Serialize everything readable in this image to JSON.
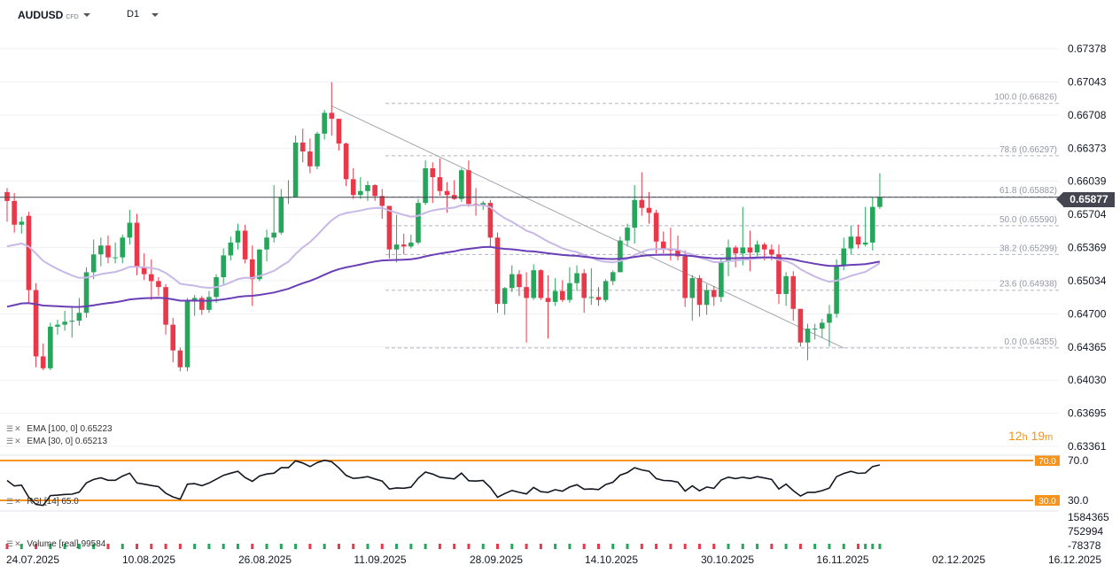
{
  "header": {
    "symbol": "AUDUSD",
    "instrument_type": "CFD",
    "timeframe": "D1"
  },
  "indicators": {
    "ema100": {
      "label": "EMA",
      "params": "[100,  0]",
      "value": "0.65223",
      "color": "#6a3fb5"
    },
    "ema30": {
      "label": "EMA",
      "params": "[30,  0]",
      "value": "0.65213",
      "color": "#c8b8e6"
    },
    "rsi": {
      "label": "RSI",
      "params": "[14]",
      "value": "65.0",
      "upper": "70.0",
      "lower": "30.0",
      "level_color": "#f7931a"
    },
    "volume": {
      "label": "Volume",
      "params": "[real]",
      "value": "99584",
      "axis": [
        "1584365",
        "752994",
        "-78378"
      ]
    }
  },
  "timer": {
    "hours": "12",
    "minutes": "19",
    "h": "h",
    "m": "m"
  },
  "current_price": "0.65877",
  "colors": {
    "up": "#26a65b",
    "down": "#e8394a",
    "axis_text": "#131722",
    "fib": "#9598a1"
  },
  "chart_data": {
    "type": "candlestick",
    "price_axis": [
      "0.67378",
      "0.67043",
      "0.66708",
      "0.66373",
      "0.66039",
      "0.65704",
      "0.65369",
      "0.65034",
      "0.64700",
      "0.64365",
      "0.64030",
      "0.63695",
      "0.63361"
    ],
    "ylim": [
      0.63361,
      0.67378
    ],
    "date_axis": [
      "24.07.2025",
      "10.08.2025",
      "26.08.2025",
      "11.09.2025",
      "28.09.2025",
      "14.10.2025",
      "30.10.2025",
      "16.11.2025",
      "02.12.2025",
      "16.12.2025"
    ],
    "fibonacci": [
      {
        "label": "100.0 (0.66826)",
        "price": 0.66826
      },
      {
        "label": "78.6 (0.66297)",
        "price": 0.66297
      },
      {
        "label": "61.8 (0.65882)",
        "price": 0.65882
      },
      {
        "label": "50.0 (0.65590)",
        "price": 0.6559
      },
      {
        "label": "38.2 (0.65299)",
        "price": 0.65299
      },
      {
        "label": "23.6 (0.64938)",
        "price": 0.64938
      },
      {
        "label": "0.0 (0.64355)",
        "price": 0.64355
      }
    ],
    "candles": [
      [
        0.6593,
        0.6597,
        0.6563,
        0.6584
      ],
      [
        0.6584,
        0.6592,
        0.6552,
        0.656
      ],
      [
        0.656,
        0.6568,
        0.6551,
        0.6563
      ],
      [
        0.6569,
        0.6573,
        0.648,
        0.6494
      ],
      [
        0.6494,
        0.6501,
        0.6416,
        0.6427
      ],
      [
        0.6427,
        0.644,
        0.6413,
        0.6415
      ],
      [
        0.6415,
        0.6461,
        0.6413,
        0.6457
      ],
      [
        0.6457,
        0.6464,
        0.6449,
        0.6459
      ],
      [
        0.6459,
        0.6473,
        0.6453,
        0.6462
      ],
      [
        0.6462,
        0.6478,
        0.6446,
        0.6463
      ],
      [
        0.6463,
        0.6486,
        0.6458,
        0.6471
      ],
      [
        0.6471,
        0.6517,
        0.6466,
        0.6512
      ],
      [
        0.6512,
        0.6545,
        0.6505,
        0.653
      ],
      [
        0.653,
        0.6547,
        0.6518,
        0.6539
      ],
      [
        0.6539,
        0.6549,
        0.6521,
        0.6527
      ],
      [
        0.6527,
        0.6542,
        0.6521,
        0.6527
      ],
      [
        0.6527,
        0.655,
        0.6521,
        0.6547
      ],
      [
        0.6547,
        0.6575,
        0.654,
        0.6562
      ],
      [
        0.6562,
        0.6571,
        0.6509,
        0.6517
      ],
      [
        0.6517,
        0.6531,
        0.6504,
        0.651
      ],
      [
        0.651,
        0.6525,
        0.6484,
        0.6503
      ],
      [
        0.6503,
        0.6507,
        0.6488,
        0.6497
      ],
      [
        0.6497,
        0.65,
        0.6449,
        0.6459
      ],
      [
        0.6459,
        0.6466,
        0.6421,
        0.6433
      ],
      [
        0.6433,
        0.6436,
        0.6412,
        0.6416
      ],
      [
        0.6416,
        0.6486,
        0.6412,
        0.6483
      ],
      [
        0.6483,
        0.6489,
        0.6468,
        0.6486
      ],
      [
        0.6486,
        0.6488,
        0.6469,
        0.6474
      ],
      [
        0.6474,
        0.6493,
        0.6471,
        0.6487
      ],
      [
        0.6487,
        0.651,
        0.6481,
        0.6507
      ],
      [
        0.6507,
        0.6536,
        0.65,
        0.6529
      ],
      [
        0.6529,
        0.6548,
        0.6524,
        0.6542
      ],
      [
        0.6542,
        0.6561,
        0.6535,
        0.6554
      ],
      [
        0.6554,
        0.656,
        0.6521,
        0.6525
      ],
      [
        0.6525,
        0.6539,
        0.6478,
        0.6505
      ],
      [
        0.6505,
        0.6535,
        0.6503,
        0.6535
      ],
      [
        0.6535,
        0.6555,
        0.6523,
        0.6547
      ],
      [
        0.6547,
        0.66,
        0.6542,
        0.6552
      ],
      [
        0.6552,
        0.6596,
        0.655,
        0.6588
      ],
      [
        0.6588,
        0.6605,
        0.6581,
        0.6588
      ],
      [
        0.6588,
        0.665,
        0.6588,
        0.6643
      ],
      [
        0.6643,
        0.6657,
        0.6623,
        0.6634
      ],
      [
        0.6634,
        0.6647,
        0.6612,
        0.6619
      ],
      [
        0.6619,
        0.6654,
        0.6616,
        0.6652
      ],
      [
        0.6652,
        0.6676,
        0.6646,
        0.6673
      ],
      [
        0.6673,
        0.6704,
        0.665,
        0.6667
      ],
      [
        0.6667,
        0.6667,
        0.6635,
        0.6642
      ],
      [
        0.6642,
        0.6643,
        0.6599,
        0.6606
      ],
      [
        0.6606,
        0.6617,
        0.6586,
        0.659
      ],
      [
        0.659,
        0.6608,
        0.6586,
        0.6594
      ],
      [
        0.6594,
        0.6604,
        0.6584,
        0.66
      ],
      [
        0.66,
        0.6601,
        0.6584,
        0.6589
      ],
      [
        0.6589,
        0.6596,
        0.6566,
        0.6579
      ],
      [
        0.6579,
        0.6579,
        0.6526,
        0.6535
      ],
      [
        0.6535,
        0.657,
        0.6522,
        0.654
      ],
      [
        0.654,
        0.6551,
        0.653,
        0.6538
      ],
      [
        0.6538,
        0.655,
        0.6536,
        0.6542
      ],
      [
        0.6542,
        0.6586,
        0.654,
        0.6582
      ],
      [
        0.6582,
        0.6625,
        0.658,
        0.6617
      ],
      [
        0.6617,
        0.6623,
        0.6582,
        0.6608
      ],
      [
        0.6608,
        0.6627,
        0.6589,
        0.6594
      ],
      [
        0.6594,
        0.6603,
        0.6572,
        0.659
      ],
      [
        0.659,
        0.6605,
        0.6585,
        0.6586
      ],
      [
        0.6586,
        0.6617,
        0.6583,
        0.6615
      ],
      [
        0.6615,
        0.6625,
        0.6578,
        0.6581
      ],
      [
        0.6581,
        0.6597,
        0.6569,
        0.6579
      ],
      [
        0.6579,
        0.6584,
        0.6575,
        0.6582
      ],
      [
        0.6582,
        0.6585,
        0.6538,
        0.6547
      ],
      [
        0.6547,
        0.6552,
        0.6471,
        0.648
      ],
      [
        0.648,
        0.6497,
        0.6469,
        0.6496
      ],
      [
        0.6496,
        0.6519,
        0.6492,
        0.651
      ],
      [
        0.651,
        0.6514,
        0.6488,
        0.6497
      ],
      [
        0.6497,
        0.6512,
        0.6441,
        0.6486
      ],
      [
        0.6486,
        0.652,
        0.6484,
        0.6514
      ],
      [
        0.6514,
        0.6515,
        0.6484,
        0.6486
      ],
      [
        0.6486,
        0.6509,
        0.6445,
        0.6482
      ],
      [
        0.6482,
        0.6506,
        0.6478,
        0.6493
      ],
      [
        0.6493,
        0.6504,
        0.6482,
        0.6484
      ],
      [
        0.6484,
        0.6517,
        0.6481,
        0.6501
      ],
      [
        0.6501,
        0.6519,
        0.6493,
        0.6511
      ],
      [
        0.6511,
        0.6515,
        0.6471,
        0.6486
      ],
      [
        0.6486,
        0.6516,
        0.6479,
        0.6487
      ],
      [
        0.6487,
        0.6497,
        0.6478,
        0.6484
      ],
      [
        0.6484,
        0.6505,
        0.6482,
        0.6503
      ],
      [
        0.6503,
        0.6514,
        0.6499,
        0.6512
      ],
      [
        0.6512,
        0.6548,
        0.6512,
        0.6544
      ],
      [
        0.6544,
        0.6561,
        0.6538,
        0.6557
      ],
      [
        0.6557,
        0.66,
        0.6541,
        0.6585
      ],
      [
        0.6585,
        0.6613,
        0.6569,
        0.6577
      ],
      [
        0.6577,
        0.6593,
        0.6561,
        0.6572
      ],
      [
        0.6572,
        0.6575,
        0.6531,
        0.6543
      ],
      [
        0.6543,
        0.6553,
        0.6531,
        0.6535
      ],
      [
        0.6535,
        0.6557,
        0.6524,
        0.6534
      ],
      [
        0.6534,
        0.6549,
        0.6524,
        0.6528
      ],
      [
        0.6528,
        0.6534,
        0.6477,
        0.6486
      ],
      [
        0.6486,
        0.6509,
        0.6463,
        0.6506
      ],
      [
        0.6506,
        0.6509,
        0.6467,
        0.6479
      ],
      [
        0.6479,
        0.65,
        0.6469,
        0.6494
      ],
      [
        0.6494,
        0.6498,
        0.6478,
        0.6487
      ],
      [
        0.6487,
        0.6526,
        0.6482,
        0.6523
      ],
      [
        0.6523,
        0.6545,
        0.6508,
        0.6537
      ],
      [
        0.6537,
        0.6539,
        0.6517,
        0.6531
      ],
      [
        0.6531,
        0.6578,
        0.6519,
        0.6537
      ],
      [
        0.6537,
        0.6554,
        0.6513,
        0.6532
      ],
      [
        0.6532,
        0.6544,
        0.6528,
        0.654
      ],
      [
        0.654,
        0.6542,
        0.6524,
        0.6535
      ],
      [
        0.6535,
        0.654,
        0.6524,
        0.653
      ],
      [
        0.653,
        0.654,
        0.648,
        0.649
      ],
      [
        0.649,
        0.6512,
        0.6478,
        0.6508
      ],
      [
        0.6508,
        0.6513,
        0.6463,
        0.6475
      ],
      [
        0.6475,
        0.6475,
        0.6437,
        0.6441
      ],
      [
        0.6441,
        0.646,
        0.6423,
        0.6455
      ],
      [
        0.6455,
        0.646,
        0.6444,
        0.6455
      ],
      [
        0.6455,
        0.6465,
        0.6446,
        0.6461
      ],
      [
        0.6461,
        0.6479,
        0.6437,
        0.647
      ],
      [
        0.647,
        0.6525,
        0.6466,
        0.6519
      ],
      [
        0.6519,
        0.6547,
        0.6514,
        0.6536
      ],
      [
        0.6536,
        0.6559,
        0.653,
        0.6548
      ],
      [
        0.6548,
        0.656,
        0.6536,
        0.654
      ],
      [
        0.654,
        0.6578,
        0.6538,
        0.6542
      ],
      [
        0.6542,
        0.6588,
        0.6534,
        0.6578
      ],
      [
        0.6578,
        0.6612,
        0.6576,
        0.6588
      ]
    ]
  }
}
